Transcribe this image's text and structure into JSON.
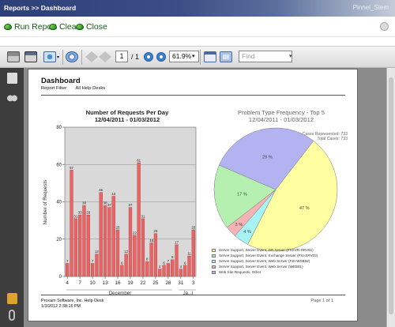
{
  "header": {
    "breadcrumb": "Reports >> Dashboard",
    "user": "Pinnel_Stem"
  },
  "actions": {
    "run": "Run Report",
    "clear": "Clear",
    "close": "Close"
  },
  "toolbar": {
    "page_current": "1",
    "page_total": "/ 1",
    "zoom": "61.9%",
    "find_placeholder": "Find"
  },
  "report": {
    "title": "Dashboard",
    "filter_label": "Report Filter:",
    "filter_value": "All Help Desks",
    "footer_line1": "Proxam Software, Inc. Help Desk",
    "footer_line2": "1/3/2012 2:38:16 PM",
    "page_footer": "Page 1 of 1"
  },
  "chart_data": [
    {
      "type": "bar",
      "title": "Number of Requests Per Day",
      "subtitle": "12/04/2011 - 01/03/2012",
      "xlabel": "December",
      "xlabel2": "Ja...l",
      "ylabel": "Number of Requests",
      "ylim": [
        0,
        80
      ],
      "yticks": [
        0,
        20,
        40,
        60,
        80
      ],
      "xtick_labels": [
        "4",
        "7",
        "10",
        "13",
        "16",
        "19",
        "22",
        "25",
        "28",
        "31",
        "3"
      ],
      "values": [
        7,
        57,
        31,
        33,
        38,
        33,
        7,
        12,
        45,
        38,
        37,
        43,
        25,
        6,
        12,
        37,
        22,
        61,
        31,
        8,
        18,
        23,
        4,
        6,
        7,
        9,
        17,
        4,
        6,
        11,
        25
      ],
      "color": "#e96464",
      "grid": true
    },
    {
      "type": "pie",
      "title": "Problem Type Frequency - Top 5",
      "subtitle": "12/04/2011 - 01/03/2012",
      "cases_represented": "Cases Represented: 733",
      "total_cases": "Total Cases: 733",
      "slices": [
        {
          "label": "Server Support, Server Event, DR Server (FSSVR-SRV01)",
          "pct": 47,
          "color": "#ffffa2"
        },
        {
          "label": "Server Support, Server Event, Exchange Server (FSI-SRV02)",
          "pct": 4,
          "color": "#a7f2f2"
        },
        {
          "label": "Server Support, Server Event, Web Server (FSI-WSB02)",
          "pct": 3,
          "color": "#f5b3b6"
        },
        {
          "label": "Web Site Requests, Other",
          "pct": 17,
          "color": "#b6f0b1"
        },
        {
          "label": "Server Support, Server Event, Web Server (WEB01)",
          "pct": 29,
          "color": "#b3b3f2"
        }
      ],
      "legend": [
        {
          "label": "Server Support, Server Event, DR Server (FSSVR-SRV01)",
          "color": "#ffffa2"
        },
        {
          "label": "Server Support, Server Event, Exchange Server (FSI-SRV02)",
          "color": "#b6f0b1"
        },
        {
          "label": "Server Support, Server Event, Web Server (FSI-WSB02)",
          "color": "#a7f2f2"
        },
        {
          "label": "Server Support, Server Event, Web Server (WEB01)",
          "color": "#f5b3b6"
        },
        {
          "label": "Web Site Requests, Other",
          "color": "#b3b3f2"
        }
      ]
    }
  ]
}
